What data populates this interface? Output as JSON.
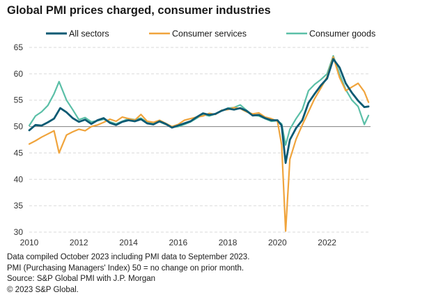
{
  "chart_data": {
    "type": "line",
    "title": "Global PMI prices charged, consumer industries",
    "xlabel": "",
    "ylabel": "",
    "xlim": [
      2010,
      2023.75
    ],
    "ylim": [
      30,
      65
    ],
    "xticks": [
      2010,
      2012,
      2014,
      2016,
      2018,
      2020,
      2022
    ],
    "xtick_labels": [
      "2010",
      "2012",
      "2014",
      "2016",
      "2018",
      "2020",
      "2022"
    ],
    "yticks": [
      30,
      35,
      40,
      45,
      50,
      55,
      60,
      65
    ],
    "ytick_labels": [
      "30",
      "35",
      "40",
      "45",
      "50",
      "55",
      "60",
      "65"
    ],
    "grid": "horizontal dashed",
    "reference_line": 50,
    "legend": "top",
    "series": [
      {
        "name": "All sectors",
        "color": "#0b5a73",
        "points": [
          [
            2010.0,
            49.3
          ],
          [
            2010.25,
            50.3
          ],
          [
            2010.5,
            50.2
          ],
          [
            2010.75,
            50.8
          ],
          [
            2011.0,
            51.5
          ],
          [
            2011.25,
            53.5
          ],
          [
            2011.5,
            52.7
          ],
          [
            2011.75,
            51.6
          ],
          [
            2012.0,
            50.9
          ],
          [
            2012.25,
            51.3
          ],
          [
            2012.5,
            50.5
          ],
          [
            2012.75,
            51.2
          ],
          [
            2013.0,
            51.6
          ],
          [
            2013.25,
            50.7
          ],
          [
            2013.5,
            50.3
          ],
          [
            2013.75,
            50.9
          ],
          [
            2014.0,
            51.2
          ],
          [
            2014.25,
            51.0
          ],
          [
            2014.5,
            51.4
          ],
          [
            2014.75,
            50.6
          ],
          [
            2015.0,
            50.4
          ],
          [
            2015.25,
            51.0
          ],
          [
            2015.5,
            50.5
          ],
          [
            2015.75,
            49.8
          ],
          [
            2016.0,
            50.2
          ],
          [
            2016.25,
            50.6
          ],
          [
            2016.5,
            51.0
          ],
          [
            2016.75,
            51.8
          ],
          [
            2017.0,
            52.5
          ],
          [
            2017.25,
            52.2
          ],
          [
            2017.5,
            52.4
          ],
          [
            2017.75,
            53.0
          ],
          [
            2018.0,
            53.4
          ],
          [
            2018.25,
            53.2
          ],
          [
            2018.5,
            53.5
          ],
          [
            2018.75,
            53.0
          ],
          [
            2019.0,
            52.1
          ],
          [
            2019.25,
            52.2
          ],
          [
            2019.5,
            51.6
          ],
          [
            2019.75,
            51.2
          ],
          [
            2020.0,
            51.2
          ],
          [
            2020.17,
            50.2
          ],
          [
            2020.33,
            43.1
          ],
          [
            2020.5,
            47.5
          ],
          [
            2020.75,
            49.7
          ],
          [
            2021.0,
            51.2
          ],
          [
            2021.25,
            54.5
          ],
          [
            2021.5,
            56.2
          ],
          [
            2021.75,
            57.8
          ],
          [
            2022.0,
            59.1
          ],
          [
            2022.25,
            62.8
          ],
          [
            2022.5,
            61.2
          ],
          [
            2022.75,
            58.2
          ],
          [
            2023.0,
            56.4
          ],
          [
            2023.25,
            54.9
          ],
          [
            2023.5,
            53.7
          ],
          [
            2023.67,
            53.8
          ]
        ]
      },
      {
        "name": "Consumer services",
        "color": "#f0a43c",
        "points": [
          [
            2010.0,
            46.7
          ],
          [
            2010.25,
            47.3
          ],
          [
            2010.5,
            48.0
          ],
          [
            2010.75,
            48.6
          ],
          [
            2011.0,
            49.2
          ],
          [
            2011.2,
            45.0
          ],
          [
            2011.5,
            48.4
          ],
          [
            2011.75,
            49.0
          ],
          [
            2012.0,
            49.5
          ],
          [
            2012.25,
            49.2
          ],
          [
            2012.5,
            50.0
          ],
          [
            2012.75,
            50.3
          ],
          [
            2013.0,
            50.8
          ],
          [
            2013.25,
            51.4
          ],
          [
            2013.5,
            51.0
          ],
          [
            2013.75,
            51.8
          ],
          [
            2014.0,
            51.5
          ],
          [
            2014.25,
            51.2
          ],
          [
            2014.5,
            52.3
          ],
          [
            2014.75,
            51.0
          ],
          [
            2015.0,
            50.8
          ],
          [
            2015.25,
            51.2
          ],
          [
            2015.5,
            50.6
          ],
          [
            2015.75,
            50.0
          ],
          [
            2016.0,
            50.4
          ],
          [
            2016.25,
            51.2
          ],
          [
            2016.5,
            51.5
          ],
          [
            2016.75,
            51.8
          ],
          [
            2017.0,
            52.0
          ],
          [
            2017.25,
            52.5
          ],
          [
            2017.5,
            52.3
          ],
          [
            2017.75,
            53.1
          ],
          [
            2018.0,
            53.2
          ],
          [
            2018.25,
            53.6
          ],
          [
            2018.5,
            53.4
          ],
          [
            2018.75,
            52.8
          ],
          [
            2019.0,
            52.4
          ],
          [
            2019.25,
            52.6
          ],
          [
            2019.5,
            51.8
          ],
          [
            2019.75,
            51.5
          ],
          [
            2020.0,
            51.0
          ],
          [
            2020.17,
            46.5
          ],
          [
            2020.33,
            30.2
          ],
          [
            2020.5,
            43.8
          ],
          [
            2020.75,
            47.6
          ],
          [
            2021.0,
            50.3
          ],
          [
            2021.25,
            52.8
          ],
          [
            2021.5,
            55.3
          ],
          [
            2021.75,
            57.3
          ],
          [
            2022.0,
            59.4
          ],
          [
            2022.25,
            63.2
          ],
          [
            2022.5,
            59.3
          ],
          [
            2022.75,
            56.8
          ],
          [
            2023.0,
            57.5
          ],
          [
            2023.25,
            58.2
          ],
          [
            2023.5,
            56.6
          ],
          [
            2023.67,
            54.6
          ]
        ]
      },
      {
        "name": "Consumer goods",
        "color": "#5bbfa7",
        "points": [
          [
            2010.0,
            50.2
          ],
          [
            2010.25,
            52.0
          ],
          [
            2010.5,
            52.8
          ],
          [
            2010.75,
            54.0
          ],
          [
            2011.0,
            56.2
          ],
          [
            2011.2,
            58.5
          ],
          [
            2011.5,
            55.0
          ],
          [
            2011.75,
            53.2
          ],
          [
            2012.0,
            51.3
          ],
          [
            2012.25,
            51.7
          ],
          [
            2012.5,
            50.9
          ],
          [
            2012.75,
            51.1
          ],
          [
            2013.0,
            51.4
          ],
          [
            2013.25,
            50.9
          ],
          [
            2013.5,
            50.5
          ],
          [
            2013.75,
            51.0
          ],
          [
            2014.0,
            51.5
          ],
          [
            2014.25,
            51.3
          ],
          [
            2014.5,
            51.6
          ],
          [
            2014.75,
            50.8
          ],
          [
            2015.0,
            50.6
          ],
          [
            2015.25,
            50.9
          ],
          [
            2015.5,
            50.4
          ],
          [
            2015.75,
            49.9
          ],
          [
            2016.0,
            50.0
          ],
          [
            2016.25,
            50.4
          ],
          [
            2016.5,
            50.9
          ],
          [
            2016.75,
            51.6
          ],
          [
            2017.0,
            52.3
          ],
          [
            2017.25,
            52.0
          ],
          [
            2017.5,
            52.4
          ],
          [
            2017.75,
            53.0
          ],
          [
            2018.0,
            53.5
          ],
          [
            2018.25,
            53.6
          ],
          [
            2018.5,
            54.1
          ],
          [
            2018.75,
            53.1
          ],
          [
            2019.0,
            52.2
          ],
          [
            2019.25,
            52.0
          ],
          [
            2019.5,
            51.5
          ],
          [
            2019.75,
            51.0
          ],
          [
            2020.0,
            51.1
          ],
          [
            2020.17,
            50.5
          ],
          [
            2020.33,
            46.5
          ],
          [
            2020.5,
            49.5
          ],
          [
            2020.75,
            51.5
          ],
          [
            2021.0,
            53.2
          ],
          [
            2021.25,
            56.8
          ],
          [
            2021.5,
            58.0
          ],
          [
            2021.75,
            58.9
          ],
          [
            2022.0,
            60.0
          ],
          [
            2022.25,
            63.4
          ],
          [
            2022.5,
            60.0
          ],
          [
            2022.75,
            57.0
          ],
          [
            2023.0,
            55.0
          ],
          [
            2023.25,
            53.8
          ],
          [
            2023.5,
            50.4
          ],
          [
            2023.67,
            52.1
          ]
        ]
      }
    ]
  },
  "notes": [
    "Data compiled October 2023 including PMI data to September 2023.",
    "PMI (Purchasing Managers' Index) 50 = no change on prior month.",
    "Source: S&P Global PMI with J.P. Morgan",
    "© 2023 S&P Global."
  ]
}
